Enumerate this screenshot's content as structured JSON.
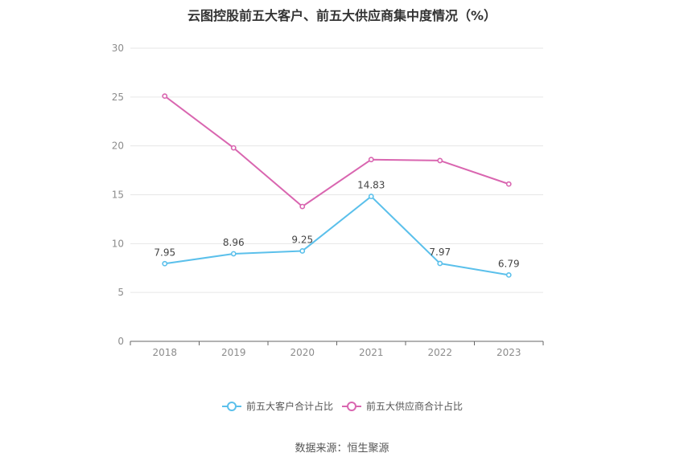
{
  "title": "云图控股前五大客户、前五大供应商集中度情况（%）",
  "source": "数据来源：恒生聚源",
  "chart_data": {
    "type": "line",
    "title": "云图控股前五大客户、前五大供应商集中度情况（%）",
    "x": [
      "2018",
      "2019",
      "2020",
      "2021",
      "2022",
      "2023"
    ],
    "ylim": [
      0,
      30
    ],
    "yticks": [
      0,
      5,
      10,
      15,
      20,
      25,
      30
    ],
    "grid": true,
    "legend_position": "bottom",
    "series": [
      {
        "name": "前五大客户合计占比",
        "color": "#5bc0eb",
        "values": [
          7.95,
          8.96,
          9.25,
          14.83,
          7.97,
          6.79
        ],
        "labels": [
          "7.95",
          "8.96",
          "9.25",
          "14.83",
          "7.97",
          "6.79"
        ]
      },
      {
        "name": "前五大供应商合计占比",
        "color": "#d966b0",
        "values": [
          25.1,
          19.8,
          13.8,
          18.6,
          18.5,
          16.1
        ]
      }
    ]
  }
}
